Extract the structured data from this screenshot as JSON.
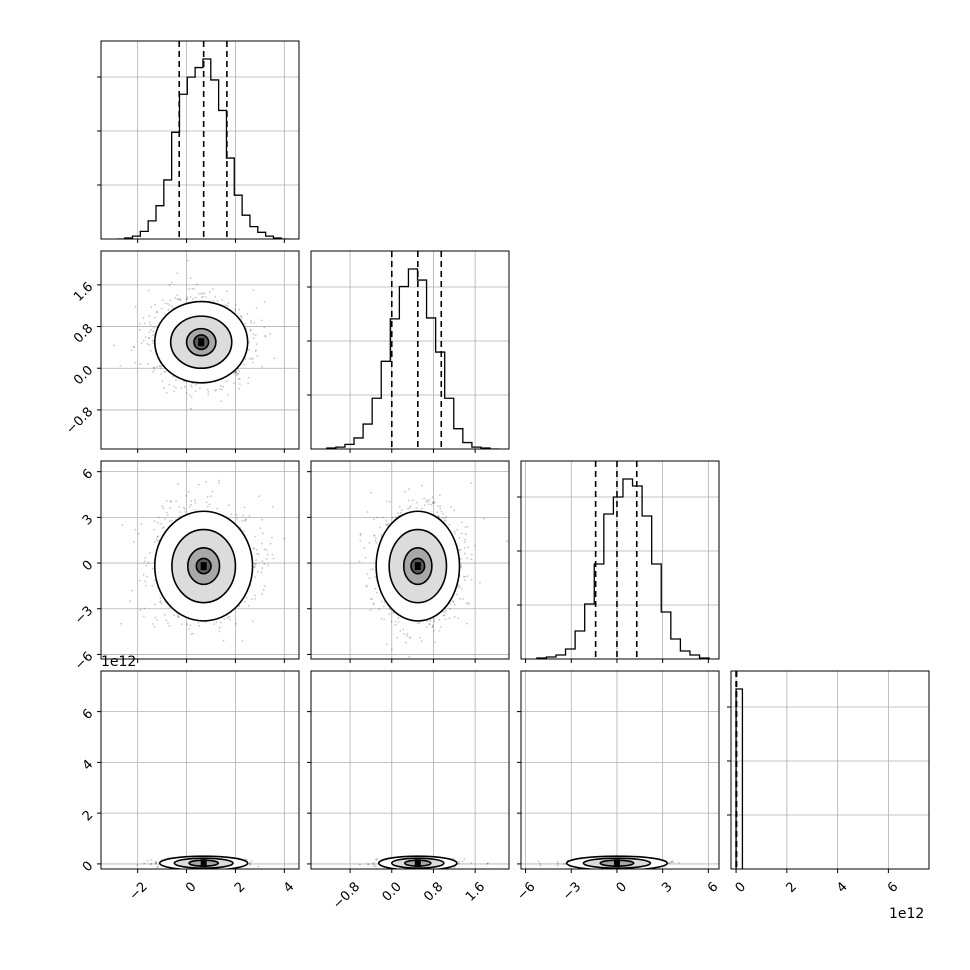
{
  "chart_data": {
    "type": "corner",
    "grid": true,
    "parameters": [
      {
        "index": 0,
        "range": [
          -3.5,
          4.6
        ],
        "ticks": [
          -2,
          0,
          2,
          4
        ],
        "tick_labels": [
          "−2",
          "0",
          "2",
          "4"
        ],
        "quantiles": [
          -0.3,
          0.7,
          1.65
        ],
        "hist_counts": [
          0,
          1,
          3,
          8,
          19,
          35,
          62,
          112,
          152,
          170,
          180,
          189,
          167,
          135,
          85,
          46,
          25,
          13,
          7,
          3,
          1,
          0
        ]
      },
      {
        "index": 1,
        "range": [
          -1.55,
          2.25
        ],
        "ticks": [
          -0.8,
          0.0,
          0.8,
          1.6
        ],
        "tick_labels": [
          "−0.8",
          "0.0",
          "0.8",
          "1.6"
        ],
        "quantiles": [
          0.0,
          0.5,
          0.95
        ],
        "hist_counts": [
          1,
          2,
          5,
          12,
          27,
          55,
          95,
          141,
          176,
          195,
          183,
          142,
          105,
          55,
          22,
          7,
          2,
          1,
          0
        ]
      },
      {
        "index": 2,
        "range": [
          -6.3,
          6.7
        ],
        "ticks": [
          -6,
          -3,
          0,
          3,
          6
        ],
        "tick_labels": [
          "−6",
          "−3",
          "0",
          "3",
          "6"
        ],
        "quantiles": [
          -1.4,
          0.0,
          1.3
        ],
        "hist_counts": [
          1,
          2,
          4,
          10,
          28,
          55,
          95,
          145,
          162,
          180,
          173,
          143,
          95,
          47,
          20,
          8,
          4,
          1
        ]
      },
      {
        "index": 3,
        "range": [
          -0.2,
          7.6
        ],
        "ticks": [
          0,
          2,
          4,
          6
        ],
        "tick_labels": [
          "0",
          "2",
          "4",
          "6"
        ],
        "offset_label": "1e12",
        "quantiles": [
          0.0,
          0.02
        ],
        "hist_counts": [
          1,
          1
        ]
      }
    ],
    "pairs": [
      {
        "x": 0,
        "y": 1,
        "centers": [
          0.6,
          0.5
        ],
        "contour_radii": [
          [
            1.9,
            0.78
          ],
          [
            1.25,
            0.5
          ],
          [
            0.6,
            0.26
          ],
          [
            0.3,
            0.14
          ]
        ]
      },
      {
        "x": 0,
        "y": 2,
        "centers": [
          0.7,
          -0.2
        ],
        "contour_radii": [
          [
            2.0,
            3.6
          ],
          [
            1.3,
            2.4
          ],
          [
            0.65,
            1.2
          ],
          [
            0.3,
            0.5
          ]
        ]
      },
      {
        "x": 1,
        "y": 2,
        "centers": [
          0.5,
          -0.2
        ],
        "contour_radii": [
          [
            0.8,
            3.6
          ],
          [
            0.55,
            2.4
          ],
          [
            0.27,
            1.2
          ],
          [
            0.13,
            0.5
          ]
        ]
      },
      {
        "x": 0,
        "y": 3,
        "centers": [
          0.7,
          0.03
        ],
        "contour_radii": [
          [
            1.8,
            0.15
          ],
          [
            1.2,
            0.1
          ],
          [
            0.6,
            0.06
          ]
        ]
      },
      {
        "x": 1,
        "y": 3,
        "centers": [
          0.5,
          0.03
        ],
        "contour_radii": [
          [
            0.75,
            0.15
          ],
          [
            0.5,
            0.1
          ],
          [
            0.25,
            0.06
          ]
        ]
      },
      {
        "x": 2,
        "y": 3,
        "centers": [
          0.0,
          0.03
        ],
        "contour_radii": [
          [
            3.3,
            0.15
          ],
          [
            2.2,
            0.1
          ],
          [
            1.1,
            0.06
          ]
        ]
      }
    ]
  },
  "figure": {
    "offset_label_x": "1e12",
    "offset_label_y": "1e12",
    "colors": {
      "line": "#000000",
      "grid": "#b0b0b0",
      "points": "#000000",
      "fill": "#808080"
    }
  }
}
